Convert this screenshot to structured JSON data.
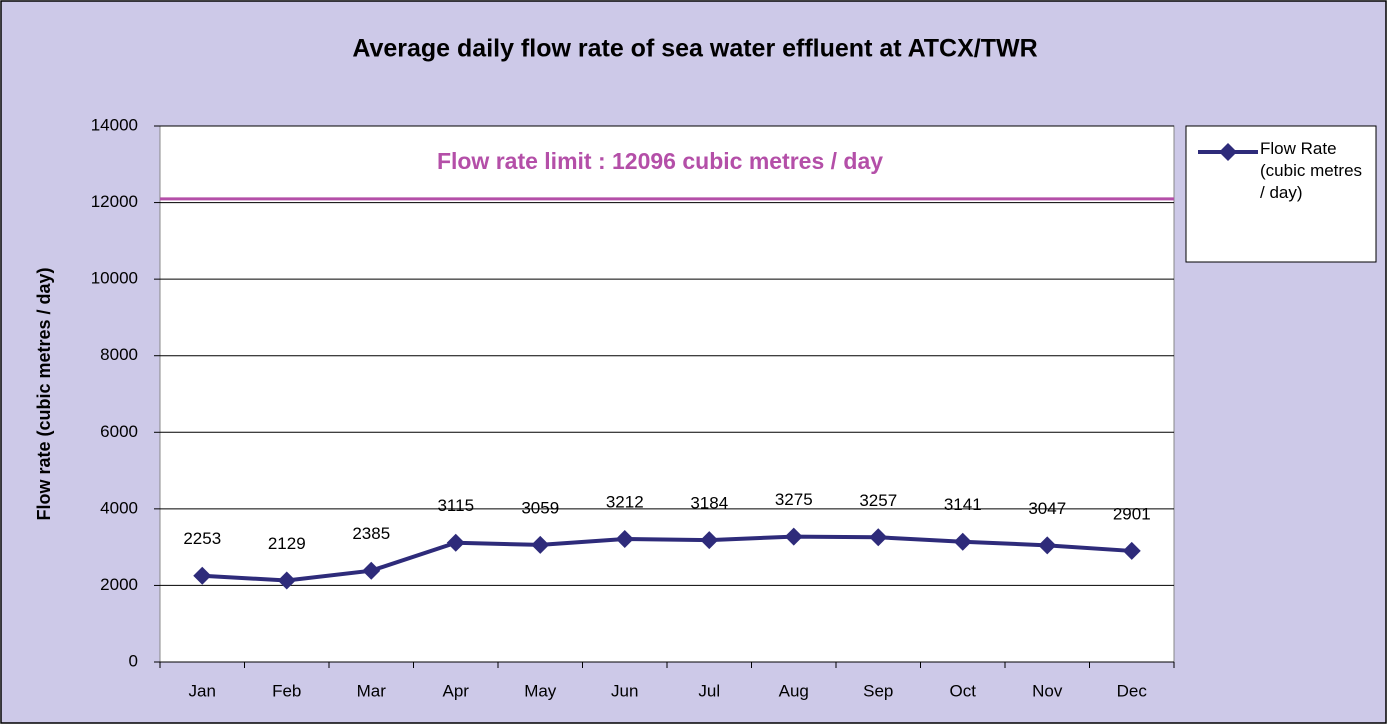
{
  "chart_data": {
    "type": "line",
    "title": "Average daily flow rate of sea water effluent at ATCX/TWR",
    "y_label": "Flow rate (cubic metres / day)",
    "categories": [
      "Jan",
      "Feb",
      "Mar",
      "Apr",
      "May",
      "Jun",
      "Jul",
      "Aug",
      "Sep",
      "Oct",
      "Nov",
      "Dec"
    ],
    "series": [
      {
        "name": "Flow Rate (cubic metres / day)",
        "color": "#2e2b7a",
        "values": [
          2253,
          2129,
          2385,
          3115,
          3059,
          3212,
          3184,
          3275,
          3257,
          3141,
          3047,
          2901
        ]
      }
    ],
    "limit": {
      "value": 12096,
      "label": "Flow rate limit : 12096 cubic metres / day",
      "color": "#b44fa8"
    },
    "ylim": [
      0,
      14000
    ],
    "yticks": [
      0,
      2000,
      4000,
      6000,
      8000,
      10000,
      12000,
      14000
    ],
    "grid": true,
    "legend": "right"
  }
}
